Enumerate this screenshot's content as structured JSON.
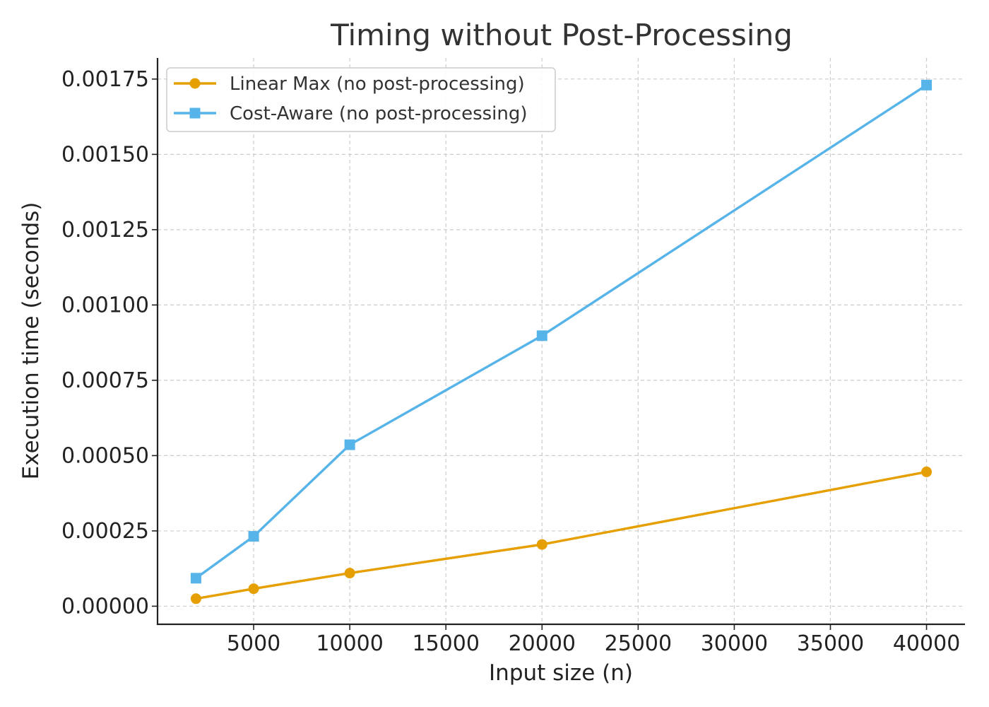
{
  "chart_data": {
    "type": "line",
    "title": "Timing without Post-Processing",
    "xlabel": "Input size (n)",
    "ylabel": "Execution time (seconds)",
    "xlim": [
      0,
      42000
    ],
    "ylim": [
      -6e-05,
      0.00182
    ],
    "xticks": [
      5000,
      10000,
      15000,
      20000,
      25000,
      30000,
      35000,
      40000
    ],
    "yticks": [
      0,
      0.00025,
      0.0005,
      0.00075,
      0.001,
      0.00125,
      0.0015,
      0.00175
    ],
    "ytick_labels": [
      "0.00000",
      "0.00025",
      "0.00050",
      "0.00075",
      "0.00100",
      "0.00125",
      "0.00150",
      "0.00175"
    ],
    "x": [
      2000,
      5000,
      10000,
      20000,
      40000
    ],
    "grid": true,
    "legend_position": "top-left",
    "series": [
      {
        "name": "Linear Max (no post-processing)",
        "values": [
          2.5e-05,
          5.8e-05,
          0.00011,
          0.000205,
          0.000446
        ],
        "color": "#E69F00",
        "marker": "circle"
      },
      {
        "name": "Cost-Aware (no post-processing)",
        "values": [
          9.3e-05,
          0.000232,
          0.000536,
          0.000898,
          0.00173
        ],
        "color": "#56B4E9",
        "marker": "square"
      }
    ]
  }
}
